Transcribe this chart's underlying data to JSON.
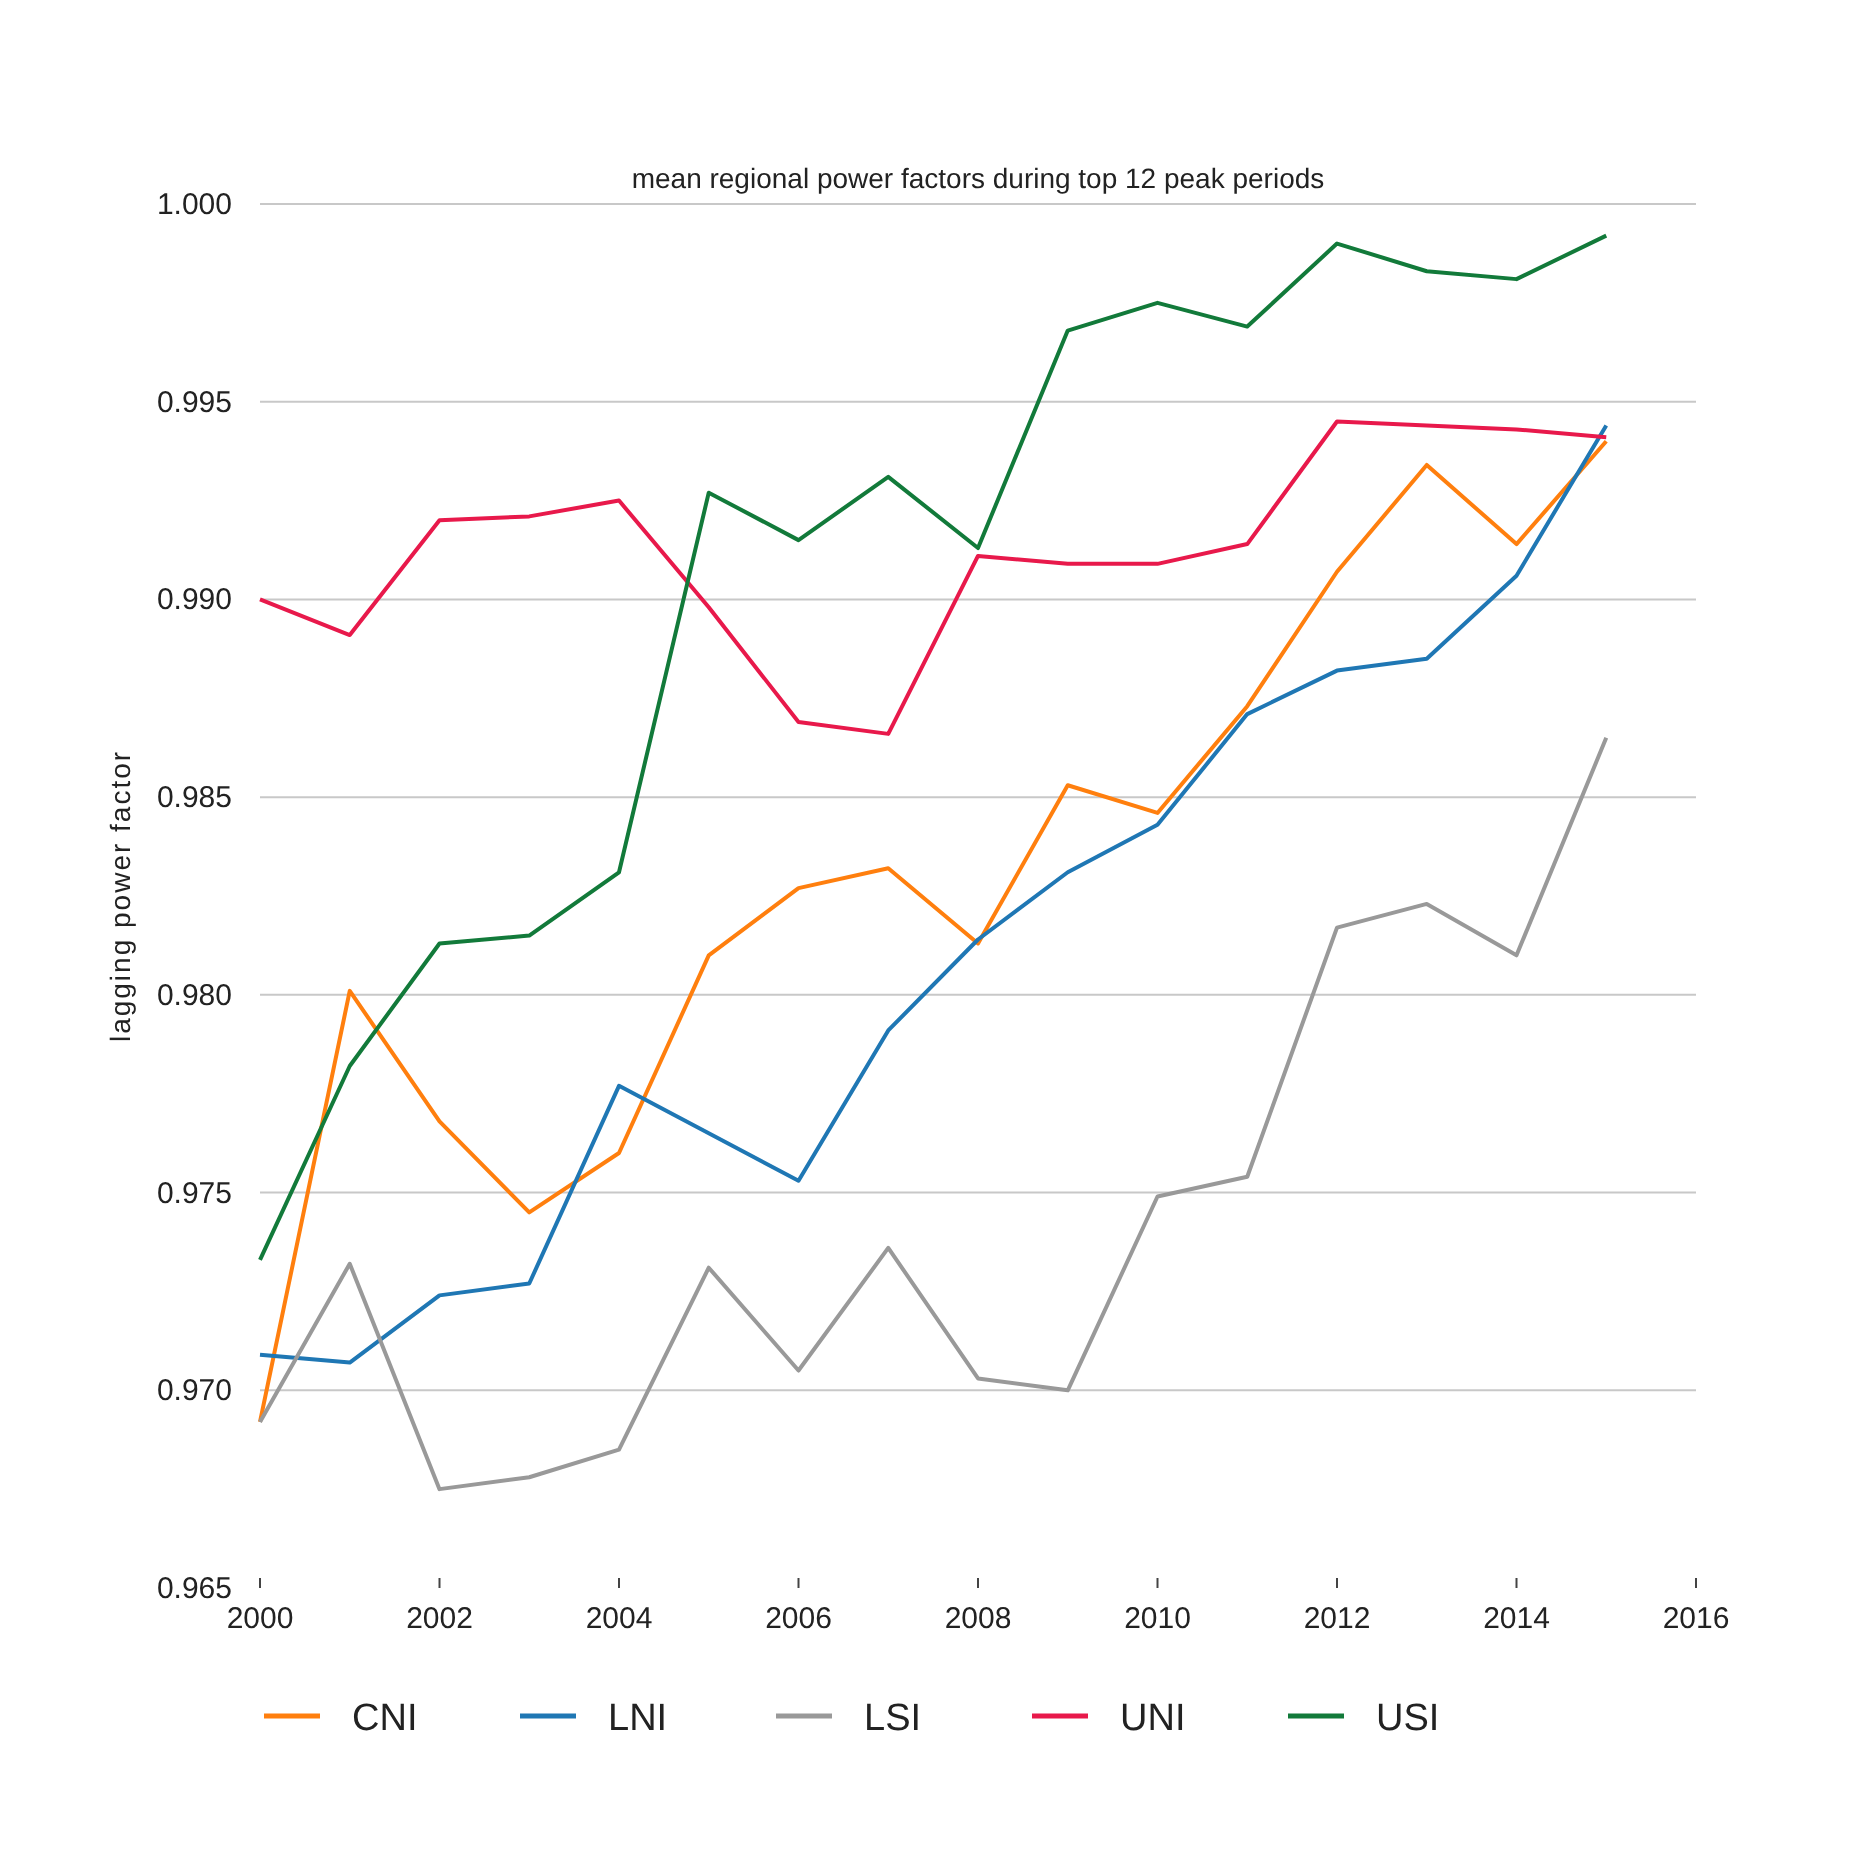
{
  "chart_data": {
    "type": "line",
    "title": "mean regional power factors during top 12 peak periods",
    "ylabel": "lagging power factor",
    "x": [
      2000,
      2001,
      2002,
      2003,
      2004,
      2005,
      2006,
      2007,
      2008,
      2009,
      2010,
      2011,
      2012,
      2013,
      2014,
      2015
    ],
    "series": [
      {
        "name": "CNI",
        "color": "#ff7f0e",
        "values": [
          0.9692,
          0.9801,
          0.9768,
          0.9745,
          0.976,
          0.981,
          0.9827,
          0.9832,
          0.9813,
          0.9853,
          0.9846,
          0.9873,
          0.9907,
          0.9934,
          0.9914,
          0.994
        ]
      },
      {
        "name": "LNI",
        "color": "#1f77b4",
        "values": [
          0.9709,
          0.9707,
          0.9724,
          0.9727,
          0.9777,
          0.9765,
          0.9753,
          0.9791,
          0.9814,
          0.9831,
          0.9843,
          0.9871,
          0.9882,
          0.9885,
          0.9906,
          0.9944
        ]
      },
      {
        "name": "LSI",
        "color": "#999999",
        "values": [
          0.9692,
          0.9732,
          0.9675,
          0.9678,
          0.9685,
          0.9731,
          0.9705,
          0.9736,
          0.9703,
          0.97,
          0.9749,
          0.9754,
          0.9817,
          0.9823,
          0.981,
          0.9865
        ]
      },
      {
        "name": "UNI",
        "color": "#e8194b",
        "values": [
          0.99,
          0.9891,
          0.992,
          0.9921,
          0.9925,
          0.9898,
          0.9869,
          0.9866,
          0.9911,
          0.9909,
          0.9909,
          0.9914,
          0.9945,
          0.9944,
          0.9943,
          0.9941
        ]
      },
      {
        "name": "USI",
        "color": "#127a3a",
        "values": [
          0.9733,
          0.9782,
          0.9813,
          0.9815,
          0.9831,
          0.9927,
          0.9915,
          0.9931,
          0.9913,
          0.9968,
          0.9975,
          0.9969,
          0.999,
          0.9983,
          0.9981,
          0.9992
        ]
      }
    ],
    "xlim": [
      2000,
      2016
    ],
    "xticks": [
      2000,
      2002,
      2004,
      2006,
      2008,
      2010,
      2012,
      2014,
      2016
    ],
    "ylim": [
      0.965,
      1.0
    ],
    "yticks": [
      {
        "value": 0.965,
        "label": "0.965"
      },
      {
        "value": 0.97,
        "label": "0.970"
      },
      {
        "value": 0.975,
        "label": "0.975"
      },
      {
        "value": 0.98,
        "label": "0.980"
      },
      {
        "value": 0.985,
        "label": "0.985"
      },
      {
        "value": 0.99,
        "label": "0.990"
      },
      {
        "value": 0.995,
        "label": "0.995"
      },
      {
        "value": 1.0,
        "label": "1.000"
      }
    ],
    "grid": "y",
    "legend": "bottom",
    "marker": "none",
    "line_style": "solid"
  }
}
